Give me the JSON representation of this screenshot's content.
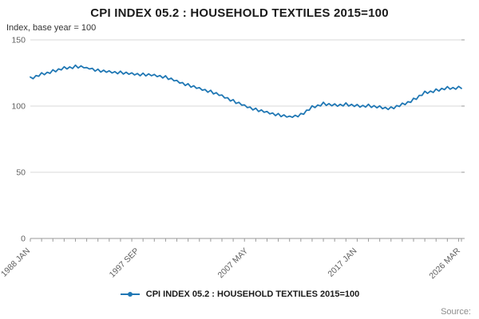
{
  "title": "CPI INDEX 05.2 : HOUSEHOLD TEXTILES 2015=100",
  "subtitle": "Index, base year = 100",
  "source_label": "Source:",
  "legend": {
    "label": "CPI INDEX 05.2 : HOUSEHOLD TEXTILES 2015=100"
  },
  "colors": {
    "line": "#1f77b4",
    "grid": "#d9d9d9",
    "axis": "#9a9a9a",
    "tick_text": "#5f5f5f"
  },
  "chart_data": {
    "type": "line",
    "title": "CPI INDEX 05.2 : HOUSEHOLD TEXTILES 2015=100",
    "xlabel": "",
    "ylabel": "Index, base year = 100",
    "ylim": [
      0,
      150
    ],
    "yticks": [
      0,
      50,
      100,
      150
    ],
    "grid": true,
    "legend_position": "bottom",
    "x_start": 1988.0,
    "x_step": 0.25,
    "x_minor_tick_every_years": 1,
    "xtick_labels": [
      {
        "x": 1988.0,
        "label": "1988 JAN"
      },
      {
        "x": 1997.6667,
        "label": "1997 SEP"
      },
      {
        "x": 2007.3333,
        "label": "2007 MAY"
      },
      {
        "x": 2017.0,
        "label": "2017 JAN"
      },
      {
        "x": 2026.1667,
        "label": "2026 MAR"
      }
    ],
    "series": [
      {
        "name": "CPI INDEX 05.2 : HOUSEHOLD TEXTILES 2015=100",
        "color": "#1f77b4",
        "values": [
          121.9,
          120.65,
          123.1,
          122.55,
          125.2,
          123.7,
          125.55,
          124.7,
          127.4,
          125.9,
          128.1,
          127.3,
          129.7,
          128.0,
          129.55,
          128.4,
          130.9,
          128.8,
          130.35,
          128.9,
          129.1,
          128.0,
          128.55,
          126.4,
          127.9,
          125.65,
          127.1,
          125.55,
          126.6,
          125.0,
          126.05,
          124.4,
          126.4,
          124.15,
          125.6,
          124.05,
          125.1,
          123.5,
          124.55,
          122.9,
          124.9,
          122.8,
          124.35,
          122.9,
          123.9,
          122.2,
          123.05,
          121.2,
          122.9,
          120.15,
          121.1,
          119.05,
          119.4,
          117.35,
          117.8,
          115.55,
          116.9,
          114.3,
          115.35,
          113.4,
          113.9,
          112.0,
          112.55,
          110.4,
          111.9,
          109.15,
          110.1,
          108.05,
          108.4,
          106.1,
          106.3,
          103.8,
          104.9,
          102.0,
          102.85,
          100.7,
          100.9,
          98.85,
          99.3,
          97.05,
          98.4,
          95.9,
          97.1,
          95.3,
          95.9,
          94.1,
          94.8,
          92.8,
          94.4,
          92.0,
          93.35,
          91.7,
          92.4,
          91.5,
          93.05,
          91.9,
          94.4,
          93.8,
          96.85,
          96.9,
          100.2,
          98.85,
          100.8,
          100.05,
          102.9,
          100.5,
          101.85,
          100.2,
          101.7,
          99.85,
          101.3,
          100.05,
          102.4,
          100.0,
          101.35,
          99.7,
          101.2,
          99.2,
          100.55,
          99.2,
          101.4,
          99.0,
          100.35,
          98.7,
          100.1,
          98.0,
          99.05,
          97.4,
          99.4,
          98.0,
          100.35,
          99.7,
          102.2,
          101.1,
          103.3,
          102.8,
          105.9,
          105.05,
          108.1,
          108.05,
          111.2,
          109.6,
          111.3,
          110.3,
          112.9,
          111.3,
          113.35,
          112.4,
          114.7,
          112.7,
          114.05,
          112.7,
          114.9,
          113.3
        ]
      }
    ]
  }
}
